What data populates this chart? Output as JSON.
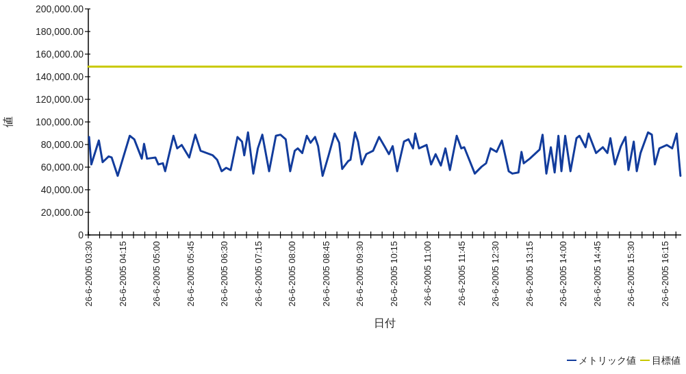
{
  "chart_data": {
    "type": "line",
    "xlabel": "日付",
    "ylabel": "値",
    "legend": "bottom right",
    "xlim": [
      "2005-06-26T03:30",
      "2005-06-26T16:37"
    ],
    "ylim": [
      0,
      200000
    ],
    "yticks": [
      0,
      {
        "value": 20000,
        "label": "20,000.00"
      },
      {
        "value": 40000,
        "label": "40,000.00"
      },
      {
        "value": 60000,
        "label": "60,000.00"
      },
      {
        "value": 80000,
        "label": "80,000.00"
      },
      {
        "value": 100000,
        "label": "100,000.00"
      },
      {
        "value": 120000,
        "label": "120,000.00"
      },
      {
        "value": 140000,
        "label": "140,000.00"
      },
      {
        "value": 160000,
        "label": "160,000.00"
      },
      {
        "value": 180000,
        "label": "180,000.00"
      },
      {
        "value": 200000,
        "label": "200,000.00"
      }
    ],
    "xticks": [
      {
        "value": "2005-06-26T03:30",
        "label": "26-6-2005 03:30"
      },
      {
        "value": "2005-06-26T03:45",
        "label": null
      },
      {
        "value": "2005-06-26T04:00",
        "label": null
      },
      {
        "value": "2005-06-26T04:15",
        "label": "26-6-2005 04:15"
      },
      {
        "value": "2005-06-26T04:30",
        "label": null
      },
      {
        "value": "2005-06-26T04:45",
        "label": null
      },
      {
        "value": "2005-06-26T05:00",
        "label": "26-6-2005 05:00"
      },
      {
        "value": "2005-06-26T05:15",
        "label": null
      },
      {
        "value": "2005-06-26T05:30",
        "label": null
      },
      {
        "value": "2005-06-26T05:45",
        "label": "26-6-2005 05:45"
      },
      {
        "value": "2005-06-26T06:00",
        "label": null
      },
      {
        "value": "2005-06-26T06:15",
        "label": null
      },
      {
        "value": "2005-06-26T06:30",
        "label": "26-6-2005 06:30"
      },
      {
        "value": "2005-06-26T06:45",
        "label": null
      },
      {
        "value": "2005-06-26T07:00",
        "label": null
      },
      {
        "value": "2005-06-26T07:15",
        "label": "26-6-2005 07:15"
      },
      {
        "value": "2005-06-26T07:30",
        "label": null
      },
      {
        "value": "2005-06-26T07:45",
        "label": null
      },
      {
        "value": "2005-06-26T08:00",
        "label": "26-6-2005 08:00"
      },
      {
        "value": "2005-06-26T08:15",
        "label": null
      },
      {
        "value": "2005-06-26T08:30",
        "label": null
      },
      {
        "value": "2005-06-26T08:45",
        "label": "26-6-2005 08:45"
      },
      {
        "value": "2005-06-26T09:00",
        "label": null
      },
      {
        "value": "2005-06-26T09:15",
        "label": null
      },
      {
        "value": "2005-06-26T09:30",
        "label": "26-6-2005 09:30"
      },
      {
        "value": "2005-06-26T09:45",
        "label": null
      },
      {
        "value": "2005-06-26T10:00",
        "label": null
      },
      {
        "value": "2005-06-26T10:15",
        "label": "26-6-2005 10:15"
      },
      {
        "value": "2005-06-26T10:30",
        "label": null
      },
      {
        "value": "2005-06-26T10:45",
        "label": null
      },
      {
        "value": "2005-06-26T11:00",
        "label": "26-6-2005 11:00"
      },
      {
        "value": "2005-06-26T11:15",
        "label": null
      },
      {
        "value": "2005-06-26T11:30",
        "label": null
      },
      {
        "value": "2005-06-26T11:45",
        "label": "26-6-2005 11:45"
      },
      {
        "value": "2005-06-26T12:00",
        "label": null
      },
      {
        "value": "2005-06-26T12:15",
        "label": null
      },
      {
        "value": "2005-06-26T12:30",
        "label": "26-6-2005 12:30"
      },
      {
        "value": "2005-06-26T12:45",
        "label": null
      },
      {
        "value": "2005-06-26T13:00",
        "label": null
      },
      {
        "value": "2005-06-26T13:15",
        "label": "26-6-2005 13:15"
      },
      {
        "value": "2005-06-26T13:30",
        "label": null
      },
      {
        "value": "2005-06-26T13:45",
        "label": null
      },
      {
        "value": "2005-06-26T14:00",
        "label": "26-6-2005 14:00"
      },
      {
        "value": "2005-06-26T14:15",
        "label": null
      },
      {
        "value": "2005-06-26T14:30",
        "label": null
      },
      {
        "value": "2005-06-26T14:45",
        "label": "26-6-2005 14:45"
      },
      {
        "value": "2005-06-26T15:00",
        "label": null
      },
      {
        "value": "2005-06-26T15:15",
        "label": null
      },
      {
        "value": "2005-06-26T15:30",
        "label": "26-6-2005 15:30"
      },
      {
        "value": "2005-06-26T15:45",
        "label": null
      },
      {
        "value": "2005-06-26T16:00",
        "label": null
      },
      {
        "value": "2005-06-26T16:15",
        "label": "26-6-2005 16:15"
      },
      {
        "value": "2005-06-26T16:30",
        "label": null
      }
    ],
    "series": [
      {
        "name": "メトリック値",
        "color": "#123c9c",
        "x": [
          "2005-06-26T03:31",
          "2005-06-26T03:34",
          "2005-06-26T03:44",
          "2005-06-26T03:49",
          "2005-06-26T03:57",
          "2005-06-26T04:01",
          "2005-06-26T04:09",
          "2005-06-26T04:25",
          "2005-06-26T04:31",
          "2005-06-26T04:41",
          "2005-06-26T04:44",
          "2005-06-26T04:48",
          "2005-06-26T04:59",
          "2005-06-26T05:03",
          "2005-06-26T05:09",
          "2005-06-26T05:12",
          "2005-06-26T05:23",
          "2005-06-26T05:28",
          "2005-06-26T05:34",
          "2005-06-26T05:44",
          "2005-06-26T05:52",
          "2005-06-26T05:59",
          "2005-06-26T06:07",
          "2005-06-26T06:15",
          "2005-06-26T06:21",
          "2005-06-26T06:27",
          "2005-06-26T06:33",
          "2005-06-26T06:39",
          "2005-06-26T06:48",
          "2005-06-26T06:54",
          "2005-06-26T06:57",
          "2005-06-26T07:02",
          "2005-06-26T07:09",
          "2005-06-26T07:15",
          "2005-06-26T07:21",
          "2005-06-26T07:30",
          "2005-06-26T07:39",
          "2005-06-26T07:45",
          "2005-06-26T07:52",
          "2005-06-26T07:58",
          "2005-06-26T08:04",
          "2005-06-26T08:08",
          "2005-06-26T08:14",
          "2005-06-26T08:20",
          "2005-06-26T08:25",
          "2005-06-26T08:31",
          "2005-06-26T08:35",
          "2005-06-26T08:41",
          "2005-06-26T08:49",
          "2005-06-26T08:57",
          "2005-06-26T09:03",
          "2005-06-26T09:07",
          "2005-06-26T09:15",
          "2005-06-26T09:18",
          "2005-06-26T09:24",
          "2005-06-26T09:28",
          "2005-06-26T09:33",
          "2005-06-26T09:39",
          "2005-06-26T09:48",
          "2005-06-26T09:56",
          "2005-06-26T10:03",
          "2005-06-26T10:09",
          "2005-06-26T10:14",
          "2005-06-26T10:20",
          "2005-06-26T10:29",
          "2005-06-26T10:35",
          "2005-06-26T10:41",
          "2005-06-26T10:44",
          "2005-06-26T10:49",
          "2005-06-26T10:59",
          "2005-06-26T11:05",
          "2005-06-26T11:11",
          "2005-06-26T11:18",
          "2005-06-26T11:24",
          "2005-06-26T11:30",
          "2005-06-26T11:39",
          "2005-06-26T11:45",
          "2005-06-26T11:49",
          "2005-06-26T12:03",
          "2005-06-26T12:12",
          "2005-06-26T12:18",
          "2005-06-26T12:24",
          "2005-06-26T12:32",
          "2005-06-26T12:39",
          "2005-06-26T12:48",
          "2005-06-26T12:53",
          "2005-06-26T13:01",
          "2005-06-26T13:05",
          "2005-06-26T13:08",
          "2005-06-26T13:16",
          "2005-06-26T13:29",
          "2005-06-26T13:33",
          "2005-06-26T13:38",
          "2005-06-26T13:44",
          "2005-06-26T13:49",
          "2005-06-26T13:54",
          "2005-06-26T13:58",
          "2005-06-26T14:03",
          "2005-06-26T14:10",
          "2005-06-26T14:18",
          "2005-06-26T14:22",
          "2005-06-26T14:30",
          "2005-06-26T14:34",
          "2005-06-26T14:44",
          "2005-06-26T14:53",
          "2005-06-26T14:59",
          "2005-06-26T15:03",
          "2005-06-26T15:09",
          "2005-06-26T15:17",
          "2005-06-26T15:23",
          "2005-06-26T15:27",
          "2005-06-26T15:34",
          "2005-06-26T15:38",
          "2005-06-26T15:43",
          "2005-06-26T15:53",
          "2005-06-26T15:58",
          "2005-06-26T16:02",
          "2005-06-26T16:08",
          "2005-06-26T16:18",
          "2005-06-26T16:25",
          "2005-06-26T16:31",
          "2005-06-26T16:36"
        ],
        "values": [
          86700,
          62400,
          83600,
          64400,
          69500,
          68500,
          52300,
          87700,
          84600,
          67500,
          80600,
          67500,
          68500,
          62400,
          63400,
          56400,
          87700,
          76600,
          79600,
          68500,
          88700,
          74500,
          72500,
          70500,
          66500,
          56400,
          59400,
          57400,
          86700,
          82600,
          70500,
          90700,
          54300,
          76600,
          88700,
          56400,
          87700,
          88700,
          84600,
          56400,
          74500,
          76600,
          72500,
          87700,
          81600,
          86700,
          78600,
          52300,
          70500,
          89700,
          81600,
          58400,
          65400,
          66500,
          90700,
          82600,
          62400,
          71500,
          74500,
          86700,
          78600,
          71500,
          78600,
          56400,
          82600,
          84600,
          76600,
          89700,
          76600,
          79600,
          62400,
          71500,
          61400,
          76600,
          57400,
          87700,
          76600,
          77600,
          54300,
          60400,
          63400,
          76600,
          73500,
          83600,
          56400,
          54300,
          55300,
          73500,
          63400,
          67500,
          75500,
          88700,
          54300,
          77600,
          55300,
          87700,
          56400,
          87700,
          56400,
          85600,
          87700,
          77600,
          89700,
          72500,
          77600,
          72500,
          85600,
          62400,
          78600,
          86700,
          57400,
          82600,
          56400,
          72500,
          90700,
          88700,
          62400,
          76600,
          79600,
          76600,
          89700,
          52300
        ]
      },
      {
        "name": "目標値",
        "color": "#c8c800",
        "x": [
          "2005-06-26T03:30",
          "2005-06-26T16:37"
        ],
        "values": [
          149000,
          149000
        ]
      }
    ]
  }
}
